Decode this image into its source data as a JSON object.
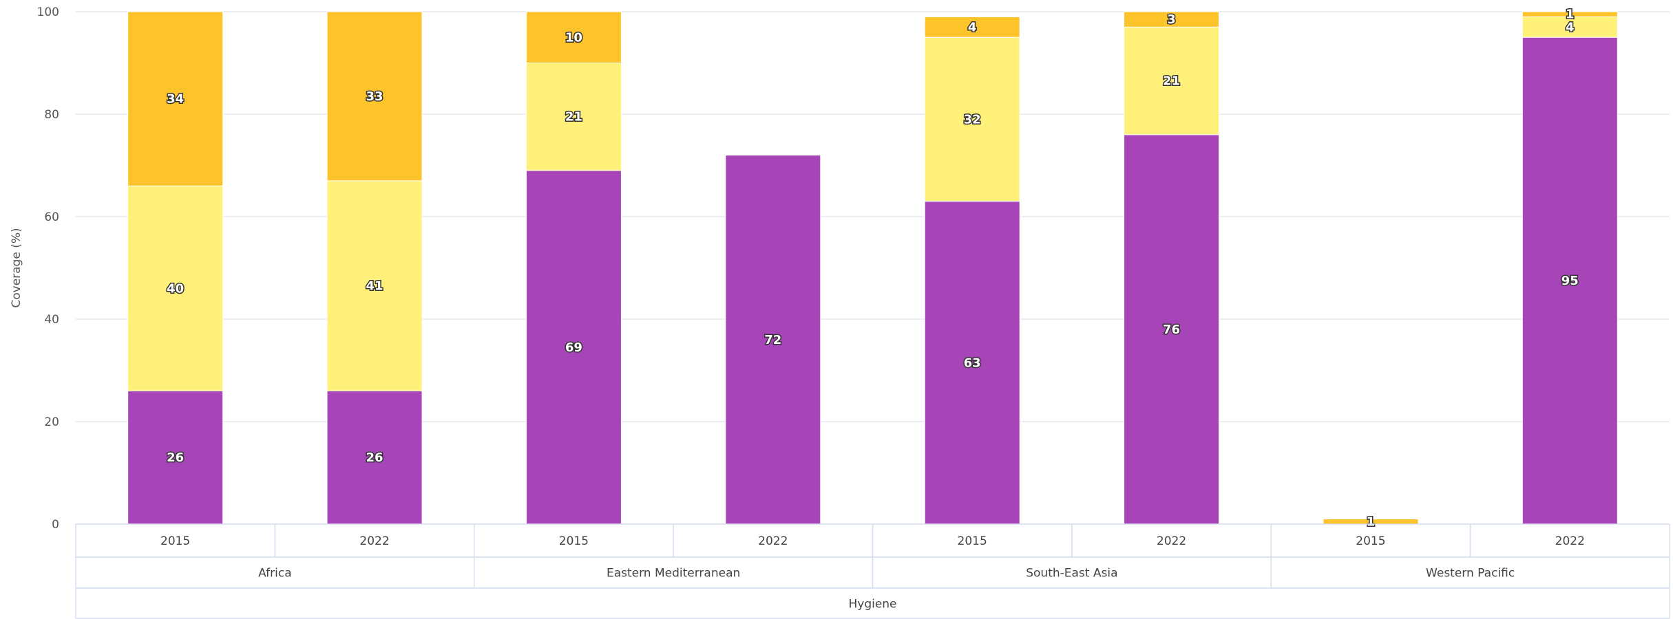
{
  "colors": {
    "purple": "#a745b8",
    "light_yellow": "#fff07a",
    "amber": "#fdc32b",
    "grid": "#e6e9f0"
  },
  "chart_data": {
    "type": "bar",
    "stacked": true,
    "ylabel": "Coverage (%)",
    "ylim": [
      0,
      100
    ],
    "yticks": [
      0,
      20,
      40,
      60,
      80,
      100
    ],
    "grid": true,
    "x_levels": {
      "year": [
        "2015",
        "2022",
        "2015",
        "2022",
        "2015",
        "2022",
        "2015",
        "2022"
      ],
      "region": [
        "Africa",
        "Eastern Mediterranean",
        "South-East Asia",
        "Western Pacific"
      ],
      "service": "Hygiene"
    },
    "series": [
      {
        "color": "#a745b8",
        "values": [
          26,
          26,
          69,
          72,
          63,
          76,
          0,
          95
        ],
        "labels": [
          "26",
          "26",
          "69",
          "72",
          "63",
          "76",
          "",
          "95"
        ]
      },
      {
        "color": "#fff07a",
        "values": [
          40,
          41,
          21,
          0,
          32,
          21,
          0,
          4
        ],
        "labels": [
          "40",
          "41",
          "21",
          "",
          "32",
          "21",
          "",
          "4"
        ]
      },
      {
        "color": "#fdc32b",
        "values": [
          34,
          33,
          10,
          0,
          4,
          3,
          1,
          1
        ],
        "labels": [
          "34",
          "33",
          "10",
          "",
          "4",
          "3",
          "1",
          "1"
        ]
      }
    ]
  }
}
